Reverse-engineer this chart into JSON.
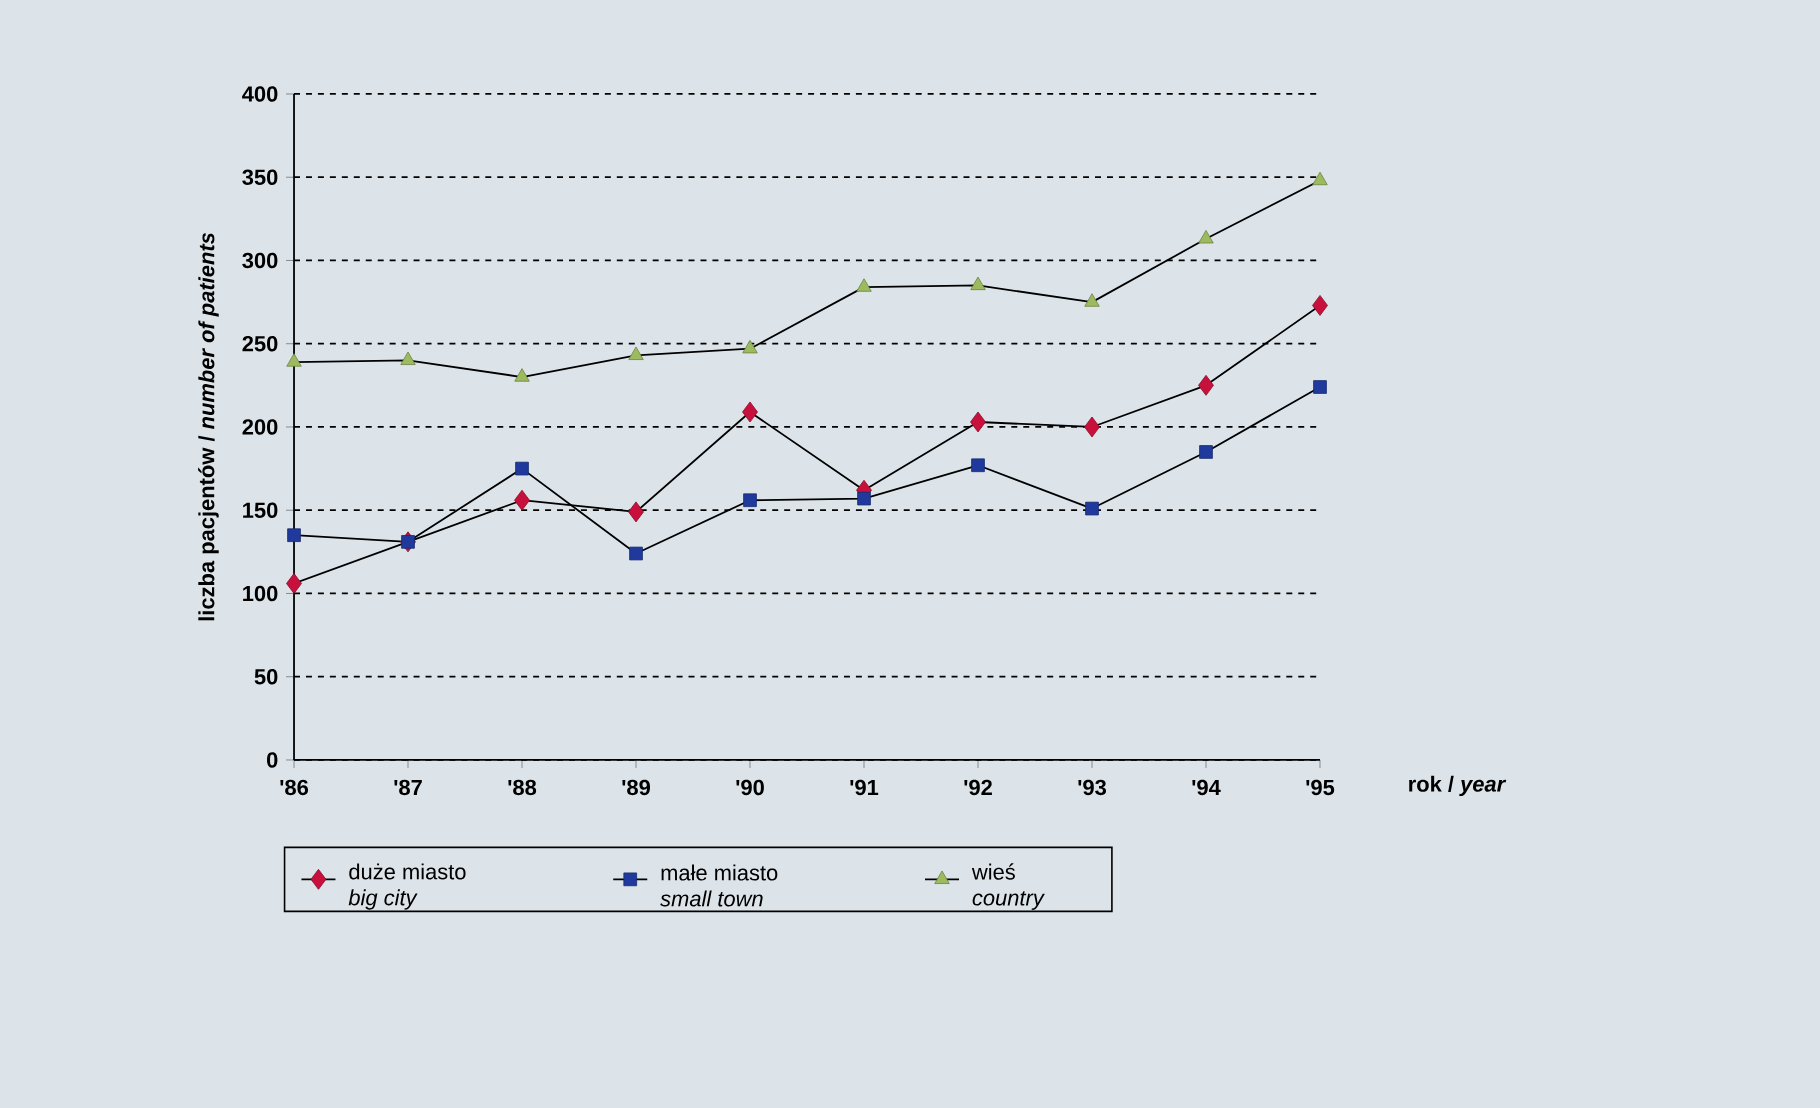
{
  "chart_data": {
    "type": "line",
    "xlabel": "rok / *year*",
    "ylabel": "liczba pacjentów / *number of patients*",
    "categories": [
      "'86",
      "'87",
      "'88",
      "'89",
      "'90",
      "'91",
      "'92",
      "'93",
      "'94",
      "'95"
    ],
    "series": [
      {
        "name": "duże miasto *big city*",
        "color": "#c8103c",
        "marker": "diamond",
        "values": [
          106,
          131,
          156,
          149,
          209,
          162,
          203,
          200,
          225,
          273
        ]
      },
      {
        "name": "małe miasto *small town*",
        "color": "#1f3a9c",
        "marker": "square",
        "values": [
          135,
          131,
          175,
          124,
          156,
          157,
          177,
          151,
          185,
          224
        ]
      },
      {
        "name": "wieś *country*",
        "color": "#9cba5e",
        "marker": "triangle",
        "values": [
          239,
          240,
          230,
          243,
          247,
          284,
          285,
          275,
          313,
          348
        ]
      }
    ],
    "ylim": [
      0,
      400
    ],
    "yticks": [
      0,
      50,
      100,
      150,
      200,
      250,
      300,
      350,
      400
    ],
    "grid": "y",
    "legend": "bottom",
    "line_style": "solid"
  }
}
